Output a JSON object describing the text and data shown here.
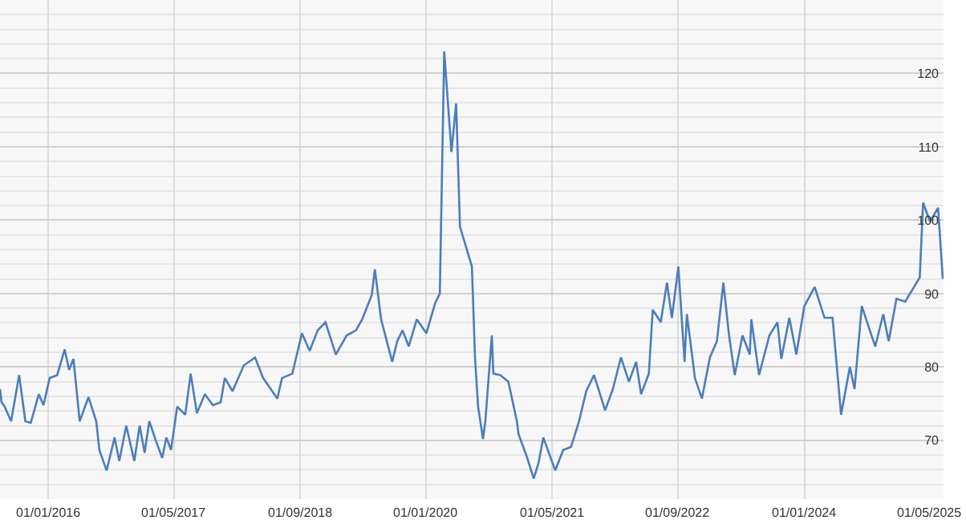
{
  "chart_data": {
    "type": "line",
    "legend": false,
    "grid": true,
    "marker": "none",
    "line_style": "solid",
    "x": [
      "2015-06-28",
      "2015-07-04",
      "2015-07-16",
      "2015-08-10",
      "2015-09-10",
      "2015-10-04",
      "2015-10-25",
      "2015-11-25",
      "2015-12-13",
      "2016-01-06",
      "2016-02-04",
      "2016-03-04",
      "2016-03-21",
      "2016-04-07",
      "2016-05-01",
      "2016-06-04",
      "2016-07-04",
      "2016-07-16",
      "2016-08-13",
      "2016-09-13",
      "2016-10-01",
      "2016-10-28",
      "2016-11-28",
      "2016-12-19",
      "2017-01-07",
      "2017-01-25",
      "2017-02-21",
      "2017-03-16",
      "2017-04-01",
      "2017-04-19",
      "2017-05-13",
      "2017-06-13",
      "2017-07-04",
      "2017-07-28",
      "2017-08-28",
      "2017-09-28",
      "2017-10-28",
      "2017-11-13",
      "2017-12-13",
      "2018-01-25",
      "2018-03-10",
      "2018-04-10",
      "2018-06-04",
      "2018-06-22",
      "2018-08-01",
      "2018-09-07",
      "2018-10-07",
      "2018-11-07",
      "2018-12-07",
      "2019-01-16",
      "2019-02-27",
      "2019-04-04",
      "2019-04-28",
      "2019-06-04",
      "2019-06-16",
      "2019-07-10",
      "2019-08-22",
      "2019-09-10",
      "2019-10-01",
      "2019-10-25",
      "2019-11-25",
      "2020-01-01",
      "2020-02-04",
      "2020-02-22",
      "2020-03-10",
      "2020-04-07",
      "2020-04-25",
      "2020-05-10",
      "2020-06-25",
      "2020-07-07",
      "2020-07-19",
      "2020-08-07",
      "2020-08-16",
      "2020-09-10",
      "2020-09-16",
      "2020-10-13",
      "2020-11-13",
      "2020-12-16",
      "2020-12-22",
      "2021-01-25",
      "2021-02-19",
      "2021-03-10",
      "2021-03-28",
      "2021-05-13",
      "2021-06-13",
      "2021-07-13",
      "2021-08-13",
      "2021-09-10",
      "2021-10-10",
      "2021-11-22",
      "2021-12-22",
      "2022-01-22",
      "2022-02-22",
      "2022-03-22",
      "2022-04-10",
      "2022-05-10",
      "2022-05-25",
      "2022-06-25",
      "2022-07-19",
      "2022-08-07",
      "2022-09-01",
      "2022-09-25",
      "2022-10-04",
      "2022-11-04",
      "2022-12-01",
      "2023-01-01",
      "2023-01-28",
      "2023-02-22",
      "2023-03-16",
      "2023-04-07",
      "2023-05-07",
      "2023-06-04",
      "2023-06-10",
      "2023-07-10",
      "2023-08-19",
      "2023-09-19",
      "2023-10-04",
      "2023-11-04",
      "2023-12-01",
      "2024-01-01",
      "2024-02-10",
      "2024-03-19",
      "2024-04-19",
      "2024-05-22",
      "2024-06-25",
      "2024-07-13",
      "2024-08-10",
      "2024-09-10",
      "2024-10-01",
      "2024-11-01",
      "2024-11-22",
      "2024-12-22",
      "2025-01-25",
      "2025-02-28",
      "2025-03-22",
      "2025-04-04",
      "2025-05-01",
      "2025-06-01",
      "2025-06-19"
    ],
    "series": [
      {
        "color": "#4a7ebb",
        "values": [
          77,
          75.2,
          74.6,
          72.6,
          78.9,
          72.6,
          72.4,
          76.3,
          74.8,
          78.5,
          78.9,
          82.4,
          79.6,
          81.1,
          72.6,
          75.9,
          72.6,
          68.7,
          65.9,
          70.4,
          67.2,
          72,
          67.2,
          72,
          68.3,
          72.6,
          69.8,
          67.6,
          70.4,
          68.7,
          74.6,
          73.5,
          79.1,
          73.7,
          76.3,
          74.8,
          75.2,
          78.5,
          76.7,
          80.2,
          81.3,
          78.5,
          75.7,
          78.5,
          79.1,
          84.6,
          82.2,
          85,
          86.1,
          81.7,
          84.3,
          85,
          86.5,
          89.8,
          93.3,
          86.5,
          80.7,
          83.5,
          85,
          82.8,
          86.5,
          84.6,
          88.7,
          90,
          123,
          109.3,
          115.9,
          99.1,
          93.7,
          81.3,
          74.6,
          70.2,
          72.6,
          84.3,
          79.1,
          78.9,
          78,
          72.6,
          70.9,
          67.6,
          64.8,
          67,
          70.4,
          65.9,
          68.7,
          69.1,
          72.6,
          76.7,
          78.9,
          74.1,
          77,
          81.3,
          78,
          80.7,
          76.3,
          79.1,
          87.8,
          86.1,
          91.5,
          86.7,
          93.7,
          80.7,
          87.2,
          78.5,
          75.7,
          81.3,
          83.5,
          91.5,
          84.3,
          78.9,
          84.3,
          81.7,
          86.5,
          78.9,
          84.3,
          86.1,
          81.1,
          86.7,
          81.7,
          88.3,
          90.9,
          86.7,
          86.7,
          73.5,
          80,
          77,
          88.3,
          85,
          82.8,
          87.2,
          83.5,
          89.3,
          88.9,
          90.9,
          92.2,
          102.4,
          99.8,
          101.7,
          92
        ]
      }
    ],
    "xlim": [
      "2015-06-28",
      "2025-06-22"
    ],
    "xticks": [
      {
        "value": "2016-01-01",
        "label": "01/01/2016"
      },
      {
        "value": "2017-05-01",
        "label": "01/05/2017"
      },
      {
        "value": "2018-09-01",
        "label": "01/09/2018"
      },
      {
        "value": "2020-01-01",
        "label": "01/01/2020"
      },
      {
        "value": "2021-05-01",
        "label": "01/05/2021"
      },
      {
        "value": "2022-09-01",
        "label": "01/09/2022"
      },
      {
        "value": "2024-01-01",
        "label": "01/01/2024"
      },
      {
        "value": "2025-05-01",
        "label": "01/05/2025"
      }
    ],
    "ylim": [
      62,
      130
    ],
    "yticks": [
      70,
      80,
      90,
      100,
      110,
      120
    ]
  }
}
